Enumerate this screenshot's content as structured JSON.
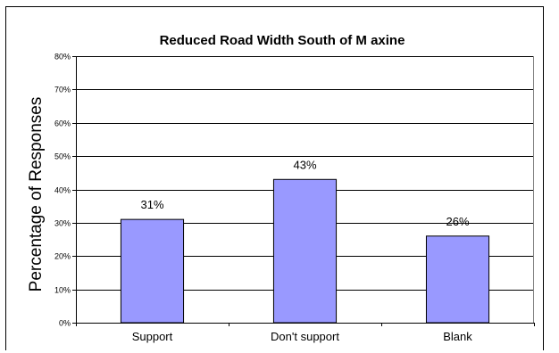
{
  "chart_data": {
    "type": "bar",
    "title": "Reduced Road Width South of M axine",
    "xlabel": "",
    "ylabel": "Percentage of Responses",
    "categories": [
      "Support",
      "Don't support",
      "Blank"
    ],
    "values": [
      31,
      43,
      26
    ],
    "data_labels": [
      "31%",
      "43%",
      "26%"
    ],
    "ylim": [
      0,
      80
    ],
    "yticks": [
      0,
      10,
      20,
      30,
      40,
      50,
      60,
      70,
      80
    ],
    "ytick_labels": [
      "0%",
      "10%",
      "20%",
      "30%",
      "40%",
      "50%",
      "60%",
      "70%",
      "80%"
    ],
    "grid": true,
    "legend": "none",
    "bar_color": "#9999ff",
    "plot_background": "#ffffff"
  }
}
